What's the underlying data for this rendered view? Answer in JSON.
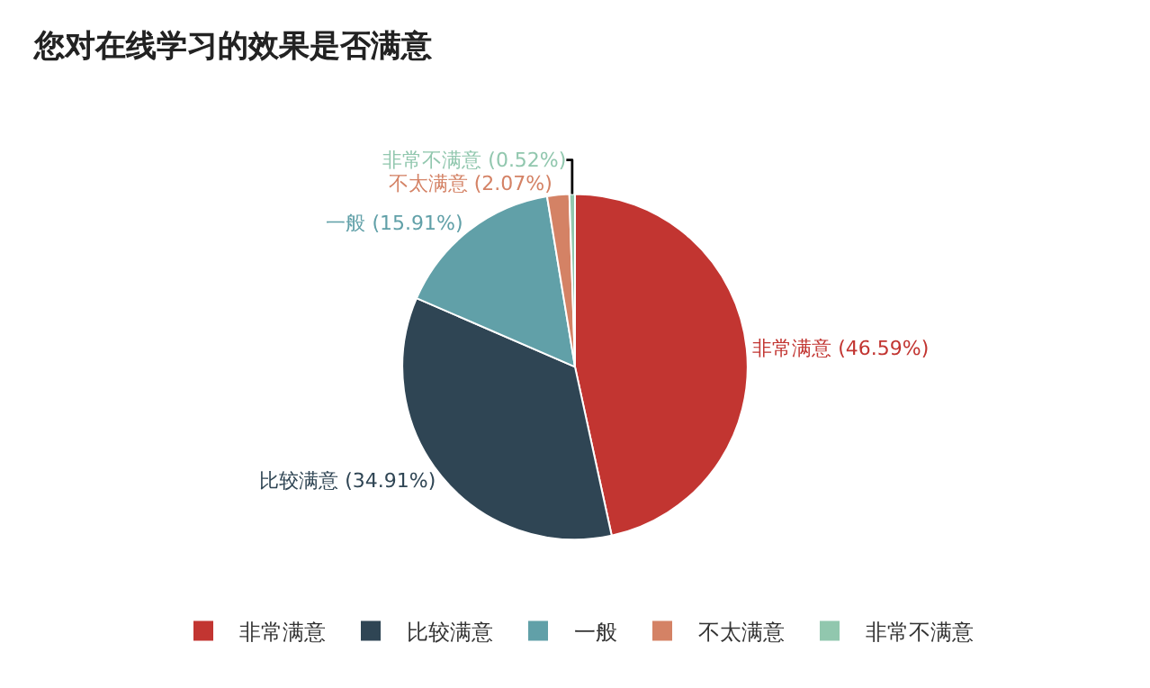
{
  "chart_data": {
    "type": "pie",
    "title": "您对在线学习的效果是否满意",
    "categories": [
      "非常满意",
      "比较满意",
      "一般",
      "不太满意",
      "非常不满意"
    ],
    "values": [
      46.59,
      34.91,
      15.91,
      2.07,
      0.52
    ],
    "colors": [
      "#c23531",
      "#2f4554",
      "#61a0a8",
      "#d48265",
      "#91c7ae"
    ],
    "value_labels": [
      "非常满意 (46.59%)",
      "比较满意 (34.91%)",
      "一般 (15.91%)",
      "不太满意 (2.07%)",
      "非常不满意 (0.52%)"
    ],
    "legend": "bottom"
  }
}
